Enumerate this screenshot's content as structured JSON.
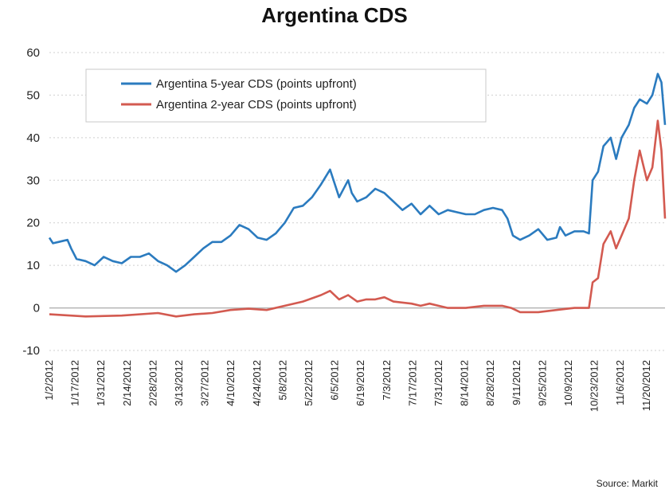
{
  "chart_data": {
    "type": "line",
    "title": "Argentina CDS",
    "xlabel": "",
    "ylabel": "",
    "ylim": [
      -10,
      60
    ],
    "yticks": [
      -10,
      0,
      10,
      20,
      30,
      40,
      50,
      60
    ],
    "grid": true,
    "legend": "top-left",
    "categories": [
      "1/2/2012",
      "1/17/2012",
      "1/31/2012",
      "2/14/2012",
      "2/28/2012",
      "3/13/2012",
      "3/27/2012",
      "4/10/2012",
      "4/24/2012",
      "5/8/2012",
      "5/22/2012",
      "6/5/2012",
      "6/19/2012",
      "7/3/2012",
      "7/17/2012",
      "7/31/2012",
      "8/14/2012",
      "8/28/2012",
      "9/11/2012",
      "9/25/2012",
      "10/9/2012",
      "10/23/2012",
      "11/6/2012",
      "11/20/2012"
    ],
    "series": [
      {
        "name": "Argentina 5-year CDS (points upfront)",
        "color": "#2b7bbf",
        "values": [
          [
            0,
            16.5
          ],
          [
            0.2,
            15.2
          ],
          [
            0.5,
            15.5
          ],
          [
            0.8,
            15.8
          ],
          [
            1,
            16
          ],
          [
            1.2,
            14
          ],
          [
            1.5,
            11.5
          ],
          [
            2,
            11
          ],
          [
            2.5,
            10
          ],
          [
            3,
            12
          ],
          [
            3.5,
            11
          ],
          [
            4,
            10.5
          ],
          [
            4.5,
            12
          ],
          [
            5,
            12
          ],
          [
            5.5,
            12.8
          ],
          [
            6,
            11
          ],
          [
            6.5,
            10
          ],
          [
            7,
            8.5
          ],
          [
            7.5,
            10
          ],
          [
            8,
            12
          ],
          [
            8.5,
            14
          ],
          [
            9,
            15.5
          ],
          [
            9.5,
            15.5
          ],
          [
            10,
            17
          ],
          [
            10.5,
            19.5
          ],
          [
            11,
            18.5
          ],
          [
            11.5,
            16.5
          ],
          [
            12,
            16
          ],
          [
            12.5,
            17.5
          ],
          [
            13,
            20
          ],
          [
            13.5,
            23.5
          ],
          [
            14,
            24
          ],
          [
            14.5,
            26
          ],
          [
            15,
            29
          ],
          [
            15.5,
            32.5
          ],
          [
            16,
            26
          ],
          [
            16.5,
            30
          ],
          [
            16.7,
            27
          ],
          [
            17,
            25
          ],
          [
            17.5,
            26
          ],
          [
            18,
            28
          ],
          [
            18.5,
            27
          ],
          [
            19,
            25
          ],
          [
            19.5,
            23
          ],
          [
            20,
            24.5
          ],
          [
            20.5,
            22
          ],
          [
            21,
            24
          ],
          [
            21.5,
            22
          ],
          [
            22,
            23
          ],
          [
            22.5,
            22.5
          ],
          [
            23,
            22
          ],
          [
            23.5,
            22
          ],
          [
            24,
            23
          ],
          [
            24.5,
            23.5
          ],
          [
            25,
            23
          ],
          [
            25.3,
            21
          ],
          [
            25.6,
            17
          ],
          [
            26,
            16
          ],
          [
            26.5,
            17
          ],
          [
            27,
            18.5
          ],
          [
            27.5,
            16
          ],
          [
            28,
            16.5
          ],
          [
            28.2,
            19
          ],
          [
            28.5,
            17
          ],
          [
            29,
            18
          ],
          [
            29.5,
            18
          ],
          [
            29.8,
            17.5
          ],
          [
            30,
            30
          ],
          [
            30.3,
            32
          ],
          [
            30.6,
            38
          ],
          [
            31,
            40
          ],
          [
            31.3,
            35
          ],
          [
            31.6,
            40
          ],
          [
            32,
            43
          ],
          [
            32.3,
            47
          ],
          [
            32.6,
            49
          ],
          [
            33,
            48
          ],
          [
            33.3,
            50
          ],
          [
            33.6,
            55
          ],
          [
            33.8,
            53
          ],
          [
            34,
            43
          ]
        ]
      },
      {
        "name": "Argentina 2-year CDS (points upfront)",
        "color": "#d35a50",
        "values": [
          [
            0,
            -1.5
          ],
          [
            2,
            -2
          ],
          [
            4,
            -1.8
          ],
          [
            6,
            -1.2
          ],
          [
            7,
            -2
          ],
          [
            8,
            -1.5
          ],
          [
            9,
            -1.2
          ],
          [
            10,
            -0.5
          ],
          [
            11,
            -0.2
          ],
          [
            12,
            -0.5
          ],
          [
            13,
            0.5
          ],
          [
            14,
            1.5
          ],
          [
            15,
            3
          ],
          [
            15.5,
            4
          ],
          [
            16,
            2
          ],
          [
            16.5,
            3
          ],
          [
            17,
            1.5
          ],
          [
            17.5,
            2
          ],
          [
            18,
            2
          ],
          [
            18.5,
            2.5
          ],
          [
            19,
            1.5
          ],
          [
            20,
            1
          ],
          [
            20.5,
            0.5
          ],
          [
            21,
            1
          ],
          [
            22,
            0
          ],
          [
            23,
            0
          ],
          [
            24,
            0.5
          ],
          [
            25,
            0.5
          ],
          [
            25.5,
            0
          ],
          [
            26,
            -1
          ],
          [
            27,
            -1
          ],
          [
            28,
            -0.5
          ],
          [
            29,
            0
          ],
          [
            29.8,
            0
          ],
          [
            30,
            6
          ],
          [
            30.3,
            7
          ],
          [
            30.6,
            15
          ],
          [
            31,
            18
          ],
          [
            31.3,
            14
          ],
          [
            31.6,
            17
          ],
          [
            32,
            21
          ],
          [
            32.3,
            30
          ],
          [
            32.6,
            37
          ],
          [
            33,
            30
          ],
          [
            33.3,
            33
          ],
          [
            33.6,
            44
          ],
          [
            33.8,
            37
          ],
          [
            34,
            21
          ]
        ]
      }
    ],
    "source": "Source: Markit"
  }
}
